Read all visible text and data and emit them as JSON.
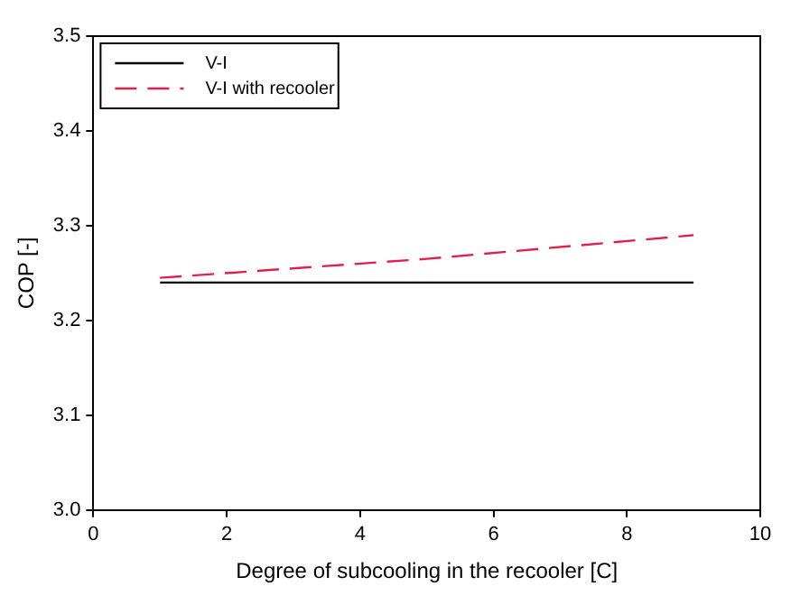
{
  "chart_data": {
    "type": "line",
    "xlabel": "Degree of subcooling in the recooler [C]",
    "ylabel": "COP [-]",
    "xlim": [
      0,
      10
    ],
    "xticks": [
      0,
      2,
      4,
      6,
      8,
      10
    ],
    "ylim": [
      3.0,
      3.5
    ],
    "yticks": [
      {
        "value": 3.0,
        "label": "3.0"
      },
      3.1,
      3.2,
      3.3,
      3.4,
      3.5
    ],
    "grid": false,
    "legend": "top left",
    "marker": "none",
    "series": [
      {
        "name": "V-I",
        "color": "#000000",
        "line_style": "solid",
        "x": [
          1,
          9
        ],
        "values": [
          3.24,
          3.24
        ]
      },
      {
        "name": "V-I with recooler",
        "color": "#e0204a",
        "line_style": "dashed",
        "x": [
          1,
          5,
          9
        ],
        "values": [
          3.245,
          3.265,
          3.29
        ]
      }
    ]
  }
}
